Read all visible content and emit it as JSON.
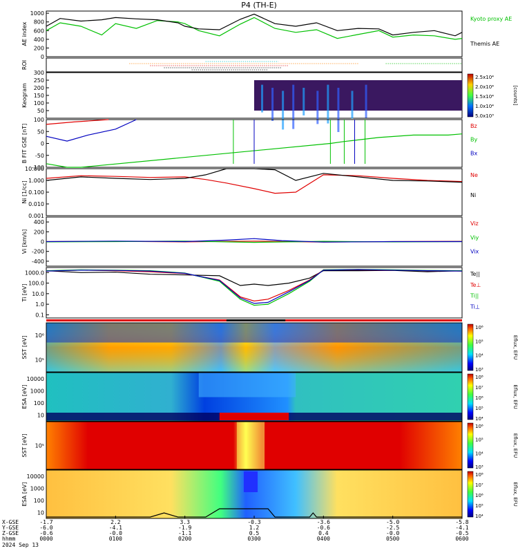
{
  "title": "P4 (TH-E)",
  "date_label": "2024 Sep 13",
  "time_axis": {
    "ticks": [
      "0000",
      "0100",
      "0200",
      "0300",
      "0400",
      "0500",
      "0600"
    ],
    "row_labels": [
      "X-GSE",
      "Y-GSE",
      "Z-GSE",
      "hhmm"
    ],
    "x_gse": [
      "-1.7",
      "2.2",
      "3.3",
      "-0.3",
      "-3.6",
      "-5.0",
      "-5.8"
    ],
    "y_gse": [
      "-6.0",
      "-4.1",
      "-1.9",
      "1.2",
      "-0.6",
      "-2.5",
      "-4.1"
    ],
    "z_gse": [
      "-0.6",
      "-0.0",
      "-1.1",
      "0.5",
      "0.4",
      "-0.0",
      "-0.5"
    ]
  },
  "colors": {
    "red": "#e00000",
    "green": "#00c000",
    "blue": "#0000c0",
    "black": "#000000",
    "orange": "#ff8000",
    "cyan": "#00c8c8"
  },
  "chart_data": [
    {
      "type": "line",
      "panel": "ae",
      "ylabel": "AE index",
      "yticks": [
        "0",
        "200",
        "400",
        "600",
        "800",
        "1000"
      ],
      "ylim": [
        0,
        1050
      ],
      "legend": [
        "Kyoto proxy AE",
        "Themis AE"
      ],
      "series": [
        {
          "name": "Kyoto proxy AE",
          "color": "#00c000",
          "x": [
            0,
            0.2,
            0.5,
            0.8,
            1.0,
            1.3,
            1.6,
            1.9,
            2.0,
            2.2,
            2.5,
            2.8,
            3.0,
            3.3,
            3.6,
            3.9,
            4.2,
            4.5,
            4.8,
            5.0,
            5.3,
            5.6,
            5.9,
            6.0
          ],
          "values": [
            600,
            780,
            700,
            500,
            760,
            650,
            830,
            800,
            760,
            600,
            480,
            750,
            900,
            650,
            560,
            620,
            420,
            510,
            600,
            450,
            500,
            480,
            400,
            420
          ]
        },
        {
          "name": "Themis AE",
          "color": "#000000",
          "x": [
            0,
            0.2,
            0.5,
            0.8,
            1.0,
            1.3,
            1.6,
            1.9,
            2.0,
            2.2,
            2.5,
            2.8,
            3.0,
            3.3,
            3.6,
            3.9,
            4.2,
            4.5,
            4.8,
            5.0,
            5.3,
            5.6,
            5.9,
            6.0
          ],
          "values": [
            700,
            880,
            820,
            850,
            900,
            870,
            850,
            780,
            700,
            640,
            620,
            860,
            980,
            760,
            700,
            780,
            600,
            650,
            640,
            500,
            560,
            600,
            480,
            560
          ]
        }
      ]
    },
    {
      "type": "scatter",
      "panel": "roi",
      "ylabel": "ROI",
      "segments": [
        {
          "color": "#00c8c8",
          "start": 2.3,
          "end": 3.35,
          "row": 0
        },
        {
          "color": "#ff8000",
          "start": 1.2,
          "end": 4.5,
          "row": 1
        },
        {
          "color": "#e00000",
          "start": 1.5,
          "end": 3.5,
          "row": 2
        },
        {
          "color": "#000000",
          "start": 1.7,
          "end": 3.4,
          "row": 3
        },
        {
          "color": "#000000",
          "start": 2.1,
          "end": 3.2,
          "row": 4
        },
        {
          "color": "#00c000",
          "start": 4.9,
          "end": 6.0,
          "row": 1
        }
      ]
    },
    {
      "type": "heatmap",
      "panel": "keogram",
      "ylabel": "Keogram",
      "yticks": [
        "50",
        "100",
        "150",
        "200",
        "250",
        "300"
      ],
      "ylim": [
        0,
        300
      ],
      "x_range": [
        3.0,
        6.0
      ],
      "y_range": [
        50,
        250
      ],
      "colorbar": {
        "ticks": [
          "5.0x10³",
          "1.0x10⁴",
          "1.5x10⁴",
          "2.0x10⁴",
          "2.5x10⁴"
        ],
        "label": "[counts]"
      }
    },
    {
      "type": "line",
      "panel": "bfit",
      "ylabel": "B FIT GSE [nT]",
      "yticks": [
        "-100",
        "-50",
        "0",
        "50",
        "100"
      ],
      "ylim": [
        -100,
        100
      ],
      "legend": [
        "Bz",
        "By",
        "Bx"
      ],
      "series": [
        {
          "name": "Bz",
          "color": "#e00000",
          "x": [
            0,
            0.4,
            0.9
          ],
          "values": [
            80,
            90,
            100
          ]
        },
        {
          "name": "By",
          "color": "#00c000",
          "x": [
            0,
            0.3,
            0.5,
            4.1,
            4.3,
            4.8,
            5.3,
            5.8,
            6.0
          ],
          "values": [
            -85,
            -100,
            -100,
            0,
            8,
            25,
            35,
            35,
            40
          ]
        },
        {
          "name": "Bx",
          "color": "#0000c0",
          "x": [
            0,
            0.3,
            0.6,
            1.0,
            1.3
          ],
          "values": [
            30,
            10,
            35,
            60,
            100
          ]
        }
      ]
    },
    {
      "type": "line",
      "panel": "density",
      "ylabel": "Ni [1/cc]",
      "yticks": [
        "0.001",
        "0.010",
        "0.100",
        "1.000",
        "10.000"
      ],
      "ylim": [
        0.001,
        10
      ],
      "log": true,
      "legend": [
        "Ne",
        "Ni"
      ],
      "series": [
        {
          "name": "Ne",
          "color": "#e00000",
          "x": [
            0,
            0.5,
            1.0,
            1.5,
            2.0,
            2.3,
            2.6,
            3.0,
            3.3,
            3.6,
            4.0,
            4.5,
            5.0,
            5.5,
            6.0
          ],
          "values": [
            1.5,
            2.5,
            2.2,
            1.8,
            2.0,
            1.2,
            0.6,
            0.2,
            0.08,
            0.1,
            3.0,
            2.5,
            1.5,
            1.0,
            0.8
          ]
        },
        {
          "name": "Ni",
          "color": "#000000",
          "x": [
            0,
            0.5,
            1.0,
            1.5,
            2.0,
            2.3,
            2.6,
            3.0,
            3.3,
            3.6,
            4.0,
            4.5,
            5.0,
            5.5,
            6.0
          ],
          "values": [
            1.0,
            2.0,
            1.5,
            1.2,
            1.5,
            3.0,
            10,
            10,
            8.0,
            1.0,
            4.0,
            2.0,
            1.0,
            0.9,
            0.7
          ]
        }
      ]
    },
    {
      "type": "line",
      "panel": "velocity",
      "ylabel": "Vi [km/s]",
      "yticks": [
        "-400",
        "-200",
        "0",
        "200",
        "400"
      ],
      "ylim": [
        -500,
        500
      ],
      "legend": [
        "Viz",
        "Viy",
        "Vix"
      ],
      "series": [
        {
          "name": "Viz",
          "color": "#e00000",
          "x": [
            0,
            1,
            2,
            3,
            4,
            5,
            6
          ],
          "values": [
            0,
            5,
            -5,
            10,
            -10,
            0,
            5
          ]
        },
        {
          "name": "Viy",
          "color": "#00c000",
          "x": [
            0,
            1,
            2,
            3,
            4,
            5,
            6
          ],
          "values": [
            -5,
            0,
            10,
            -15,
            5,
            -5,
            0
          ]
        },
        {
          "name": "Vix",
          "color": "#0000c0",
          "x": [
            0,
            1,
            2,
            2.6,
            3.0,
            3.4,
            4,
            5,
            6
          ],
          "values": [
            0,
            10,
            0,
            30,
            60,
            20,
            -10,
            0,
            0
          ]
        }
      ]
    },
    {
      "type": "line",
      "panel": "temperature",
      "ylabel": "Ti [eV]",
      "yticks": [
        "0.1",
        "1.0",
        "10.0",
        "100.0",
        "1000.0"
      ],
      "ylim": [
        0.05,
        3000
      ],
      "log": true,
      "legend": [
        "Te||",
        "Te⊥",
        "Ti||",
        "Ti⊥"
      ],
      "series": [
        {
          "name": "Te||",
          "color": "#000000",
          "x": [
            0,
            0.5,
            1.0,
            1.5,
            2.0,
            2.5,
            2.8,
            3.0,
            3.2,
            3.5,
            3.8,
            4.0,
            4.5,
            5.0,
            5.5,
            6.0
          ],
          "values": [
            1500,
            1000,
            1100,
            700,
            600,
            500,
            60,
            80,
            60,
            100,
            300,
            1500,
            1500,
            1600,
            1200,
            1500
          ]
        },
        {
          "name": "Te⊥",
          "color": "#e00000",
          "x": [
            0,
            0.5,
            1.0,
            1.5,
            2.0,
            2.5,
            2.8,
            3.0,
            3.2,
            3.5,
            3.8,
            4.0,
            4.5,
            5.0,
            5.5,
            6.0
          ],
          "values": [
            1400,
            1700,
            1500,
            1200,
            800,
            200,
            5,
            2,
            3,
            20,
            200,
            1800,
            1800,
            1700,
            1500,
            1400
          ]
        },
        {
          "name": "Ti||",
          "color": "#00c000",
          "x": [
            0,
            0.5,
            1.0,
            1.5,
            2.0,
            2.5,
            2.8,
            3.0,
            3.2,
            3.5,
            3.8,
            4.0,
            4.5,
            5.0,
            5.5,
            6.0
          ],
          "values": [
            1500,
            1800,
            1700,
            1500,
            900,
            150,
            3,
            0.8,
            1,
            10,
            150,
            1800,
            2000,
            1800,
            1600,
            1500
          ]
        },
        {
          "name": "Ti⊥",
          "color": "#0000c0",
          "x": [
            0,
            0.5,
            1.0,
            1.5,
            2.0,
            2.5,
            2.8,
            3.0,
            3.2,
            3.5,
            3.8,
            4.0,
            4.5,
            5.0,
            5.5,
            6.0
          ],
          "values": [
            1400,
            1700,
            1600,
            1400,
            850,
            180,
            4,
            1.2,
            1.5,
            15,
            180,
            1700,
            1900,
            1700,
            1500,
            1400
          ]
        }
      ]
    },
    {
      "type": "heatmap",
      "panel": "sst_e",
      "ylabel": "SST [eV]",
      "yticks": [
        "10⁵",
        "10⁶"
      ],
      "colorbar": {
        "ticks": [
          "10³",
          "10⁴",
          "10⁵",
          "10⁶"
        ],
        "label": "Eflux, EFU"
      }
    },
    {
      "type": "heatmap",
      "panel": "esa_e",
      "ylabel": "ESA [eV]",
      "yticks": [
        "10",
        "100",
        "1000",
        "10000"
      ],
      "colorbar": {
        "ticks": [
          "10⁴",
          "10⁵",
          "10⁶",
          "10⁷",
          "10⁸"
        ],
        "label": "Eflux, EFU"
      }
    },
    {
      "type": "heatmap",
      "panel": "sst_i",
      "ylabel": "SST [eV]",
      "yticks": [
        "10⁵"
      ],
      "colorbar": {
        "ticks": [
          "10³",
          "10⁴",
          "10⁵",
          "10⁶"
        ],
        "label": "Eflux, EFU"
      }
    },
    {
      "type": "heatmap",
      "panel": "esa_i",
      "ylabel": "ESA [eV]",
      "yticks": [
        "10",
        "100",
        "1000",
        "10000"
      ],
      "colorbar": {
        "ticks": [
          "10⁴",
          "10⁵",
          "10⁶",
          "10⁷",
          "10⁸"
        ],
        "label": "Eflux, EFU"
      }
    }
  ]
}
